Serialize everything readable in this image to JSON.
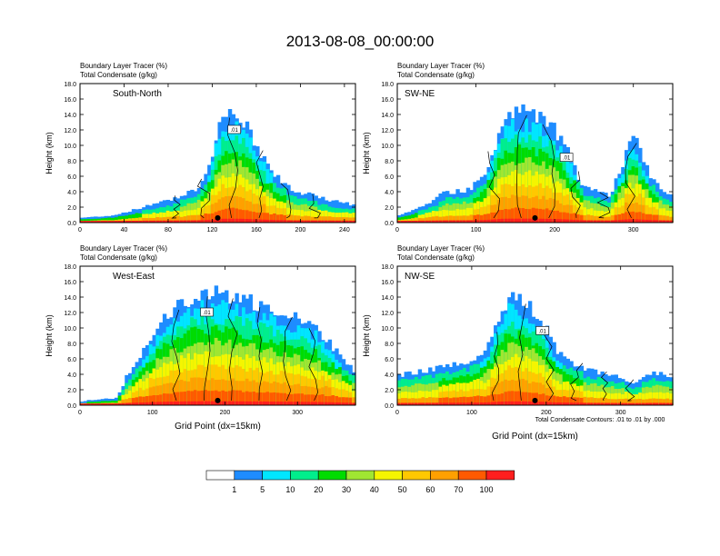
{
  "title": "2013-08-08_00:00:00",
  "field_labels": [
    "Boundary Layer Tracer   (%)",
    "Total Condensate   (g/kg)"
  ],
  "contour_note": "Total Condensate Contours: .01 to .01 by .000",
  "xlabel": "Grid Point (dx=15km)",
  "ylabel": "Height (km)",
  "contour_label": ".01",
  "colorbar": {
    "labels": [
      "1",
      "5",
      "10",
      "20",
      "30",
      "40",
      "50",
      "60",
      "70",
      "100"
    ],
    "colors": [
      "#ffffff",
      "#1e8cff",
      "#00e6ff",
      "#00ee8c",
      "#00dc00",
      "#a0e632",
      "#f5f500",
      "#ffc800",
      "#ffa000",
      "#ff5a00",
      "#ff1e1e"
    ]
  },
  "chart_data": [
    {
      "type": "heatmap",
      "panel": "South-North",
      "title": "South-North",
      "ylabel": "Height (km)",
      "xlabel": "",
      "ylim": [
        0,
        18
      ],
      "xlim": [
        0,
        250
      ],
      "xticks": [
        0,
        40,
        80,
        120,
        160,
        200,
        240
      ],
      "yticks": [
        "0.0",
        "2.0",
        "4.0",
        "6.0",
        "8.0",
        "10.0",
        "12.0",
        "14.0",
        "16.0",
        "18.0"
      ],
      "profile": [
        [
          0,
          0.8
        ],
        [
          30,
          1.2
        ],
        [
          50,
          2.2
        ],
        [
          70,
          3.0
        ],
        [
          90,
          4.0
        ],
        [
          110,
          5.5
        ],
        [
          118,
          8.0
        ],
        [
          124,
          12.0
        ],
        [
          130,
          14.8
        ],
        [
          140,
          15.2
        ],
        [
          150,
          14.0
        ],
        [
          160,
          11.0
        ],
        [
          170,
          8.5
        ],
        [
          180,
          6.5
        ],
        [
          195,
          4.8
        ],
        [
          215,
          4.0
        ],
        [
          235,
          3.2
        ],
        [
          250,
          2.8
        ]
      ]
    },
    {
      "type": "heatmap",
      "panel": "SW-NE",
      "title": "SW-NE",
      "ylabel": "Height (km)",
      "xlabel": "",
      "ylim": [
        0,
        18
      ],
      "xlim": [
        0,
        350
      ],
      "xticks": [
        0,
        100,
        200,
        300
      ],
      "yticks": [
        "0.0",
        "2.0",
        "4.0",
        "6.0",
        "8.0",
        "10.0",
        "12.0",
        "14.0",
        "16.0",
        "18.0"
      ],
      "profile": [
        [
          0,
          1.2
        ],
        [
          40,
          3.0
        ],
        [
          60,
          4.5
        ],
        [
          90,
          5.0
        ],
        [
          110,
          6.5
        ],
        [
          125,
          11.0
        ],
        [
          135,
          15.0
        ],
        [
          160,
          15.5
        ],
        [
          190,
          14.5
        ],
        [
          215,
          10.5
        ],
        [
          235,
          5.5
        ],
        [
          270,
          4.0
        ],
        [
          285,
          8.0
        ],
        [
          295,
          11.5
        ],
        [
          305,
          11.2
        ],
        [
          320,
          7.0
        ],
        [
          335,
          5.2
        ],
        [
          350,
          4.0
        ]
      ]
    },
    {
      "type": "heatmap",
      "panel": "West-East",
      "title": "West-East",
      "ylabel": "Height (km)",
      "xlabel": "Grid Point (dx=15km)",
      "ylim": [
        0,
        18
      ],
      "xlim": [
        0,
        380
      ],
      "xticks": [
        0,
        100,
        200,
        300
      ],
      "yticks": [
        "0.0",
        "2.0",
        "4.0",
        "6.0",
        "8.0",
        "10.0",
        "12.0",
        "14.0",
        "16.0",
        "18.0"
      ],
      "profile": [
        [
          0,
          0.7
        ],
        [
          50,
          1.2
        ],
        [
          65,
          4.5
        ],
        [
          90,
          8.0
        ],
        [
          110,
          11.5
        ],
        [
          130,
          13.5
        ],
        [
          150,
          15.0
        ],
        [
          175,
          15.8
        ],
        [
          205,
          15.5
        ],
        [
          250,
          14.0
        ],
        [
          290,
          12.5
        ],
        [
          325,
          11.0
        ],
        [
          345,
          9.0
        ],
        [
          365,
          6.5
        ],
        [
          380,
          5.0
        ]
      ]
    },
    {
      "type": "heatmap",
      "panel": "NW-SE",
      "title": "NW-SE",
      "ylabel": "Height (km)",
      "xlabel": "Grid Point (dx=15km)",
      "ylim": [
        0,
        18
      ],
      "xlim": [
        0,
        370
      ],
      "xticks": [
        0,
        100,
        200,
        300
      ],
      "yticks": [
        "0.0",
        "2.0",
        "4.0",
        "6.0",
        "8.0",
        "10.0",
        "12.0",
        "14.0",
        "16.0",
        "18.0"
      ],
      "profile": [
        [
          0,
          4.5
        ],
        [
          50,
          5.5
        ],
        [
          100,
          6.5
        ],
        [
          120,
          8.0
        ],
        [
          135,
          12.0
        ],
        [
          150,
          15.0
        ],
        [
          170,
          14.5
        ],
        [
          195,
          12.0
        ],
        [
          215,
          7.5
        ],
        [
          250,
          5.5
        ],
        [
          290,
          4.5
        ],
        [
          320,
          3.5
        ],
        [
          345,
          5.0
        ],
        [
          370,
          4.2
        ]
      ]
    }
  ]
}
